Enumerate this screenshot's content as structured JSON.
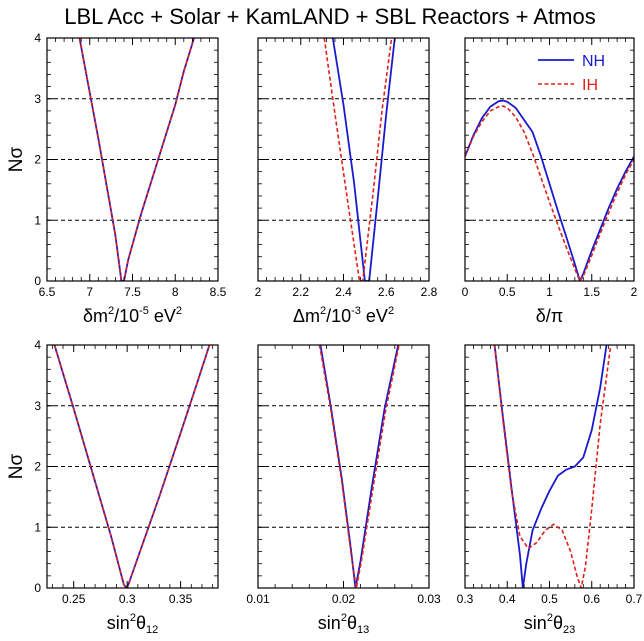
{
  "figure_title": "LBL Acc + Solar + KamLAND + SBL Reactors + Atmos",
  "colors": {
    "nh": "#1a1acc",
    "ih": "#e0201a",
    "axis": "#000000",
    "grid": "#000000"
  },
  "chart_data": [
    {
      "type": "line",
      "panel": "dm21",
      "xlabel": {
        "base": "δm",
        "sup": "2",
        "rest": "/10",
        "sup2": "-5",
        "unit": " eV",
        "sup3": "2"
      },
      "ylabel": "Nσ",
      "xlim": [
        6.5,
        8.5
      ],
      "ylim": [
        0,
        4
      ],
      "xticks": [
        6.5,
        7,
        7.5,
        8,
        8.5
      ],
      "xtick_labels": [
        "6.5",
        "7",
        "7.5",
        "8",
        "8.5"
      ],
      "yticks": [
        0,
        1,
        2,
        3,
        4
      ],
      "ytick_labels": [
        "0",
        "1",
        "2",
        "3",
        "4"
      ],
      "series": [
        {
          "key": "NH",
          "x": [
            6.88,
            7.0,
            7.1,
            7.2,
            7.3,
            7.37,
            7.4,
            7.45,
            7.6,
            7.8,
            8.0,
            8.1,
            8.22
          ],
          "y": [
            4.0,
            3.1,
            2.35,
            1.55,
            0.75,
            0.0,
            0.0,
            0.35,
            1.1,
            2.0,
            2.9,
            3.45,
            4.0
          ]
        },
        {
          "key": "IH",
          "x": [
            6.88,
            7.0,
            7.1,
            7.2,
            7.3,
            7.37,
            7.4,
            7.45,
            7.6,
            7.8,
            8.0,
            8.1,
            8.22
          ],
          "y": [
            4.0,
            3.1,
            2.35,
            1.55,
            0.75,
            0.0,
            0.0,
            0.35,
            1.1,
            2.0,
            2.9,
            3.45,
            4.0
          ]
        }
      ]
    },
    {
      "type": "line",
      "panel": "dm31",
      "xlabel": {
        "base": "Δm",
        "sup": "2",
        "rest": "/10",
        "sup2": "-3",
        "unit": " eV",
        "sup3": "2"
      },
      "ylabel": "",
      "xlim": [
        2.0,
        2.8
      ],
      "ylim": [
        0,
        4
      ],
      "xticks": [
        2.0,
        2.2,
        2.4,
        2.6,
        2.8
      ],
      "xtick_labels": [
        "2",
        "2.2",
        "2.4",
        "2.6",
        "2.8"
      ],
      "yticks": [
        0,
        1,
        2,
        3,
        4
      ],
      "ytick_labels": [],
      "series": [
        {
          "key": "NH",
          "x": [
            2.35,
            2.4,
            2.45,
            2.5,
            2.52,
            2.56,
            2.6,
            2.64
          ],
          "y": [
            4.0,
            2.9,
            1.6,
            0.0,
            0.0,
            1.35,
            2.75,
            4.0
          ]
        },
        {
          "key": "IH",
          "x": [
            2.31,
            2.36,
            2.42,
            2.475,
            2.49,
            2.54,
            2.58,
            2.625
          ],
          "y": [
            4.0,
            2.75,
            1.3,
            0.0,
            0.0,
            1.5,
            2.8,
            4.0
          ]
        }
      ]
    },
    {
      "type": "line",
      "panel": "delta",
      "xlabel": {
        "base": "δ/π",
        "sup": "",
        "rest": "",
        "sup2": "",
        "unit": "",
        "sup3": ""
      },
      "ylabel": "",
      "xlim": [
        0,
        2
      ],
      "ylim": [
        0,
        4
      ],
      "xticks": [
        0,
        0.5,
        1,
        1.5,
        2
      ],
      "xtick_labels": [
        "0",
        "0.5",
        "1",
        "1.5",
        "2"
      ],
      "yticks": [
        0,
        1,
        2,
        3,
        4
      ],
      "ytick_labels": [],
      "legend_position": "top-right",
      "series": [
        {
          "key": "NH",
          "name": "NH",
          "x": [
            0,
            0.1,
            0.2,
            0.3,
            0.4,
            0.45,
            0.5,
            0.6,
            0.7,
            0.8,
            0.9,
            1.0,
            1.1,
            1.2,
            1.3,
            1.36,
            1.4,
            1.5,
            1.6,
            1.7,
            1.8,
            1.9,
            2.0
          ],
          "y": [
            2.05,
            2.4,
            2.68,
            2.87,
            2.96,
            2.97,
            2.95,
            2.85,
            2.65,
            2.45,
            2.05,
            1.6,
            1.15,
            0.72,
            0.28,
            0.0,
            0.12,
            0.5,
            0.85,
            1.2,
            1.52,
            1.8,
            2.05
          ]
        },
        {
          "key": "IH",
          "name": "IH",
          "x": [
            0,
            0.1,
            0.2,
            0.3,
            0.4,
            0.45,
            0.5,
            0.6,
            0.7,
            0.8,
            0.9,
            1.0,
            1.1,
            1.2,
            1.3,
            1.36,
            1.4,
            1.5,
            1.6,
            1.7,
            1.8,
            1.9,
            2.0
          ],
          "y": [
            2.05,
            2.38,
            2.62,
            2.8,
            2.87,
            2.88,
            2.85,
            2.7,
            2.45,
            2.1,
            1.7,
            1.3,
            0.92,
            0.55,
            0.2,
            0.0,
            0.08,
            0.42,
            0.78,
            1.12,
            1.45,
            1.75,
            2.0
          ]
        }
      ]
    },
    {
      "type": "line",
      "panel": "th12",
      "xlabel": {
        "base": "sin",
        "sup": "2",
        "rest": "θ",
        "sub": "12",
        "sup2": "",
        "unit": "",
        "sup3": ""
      },
      "ylabel": "Nσ",
      "xlim": [
        0.225,
        0.385
      ],
      "ylim": [
        0,
        4
      ],
      "xticks": [
        0.25,
        0.3,
        0.35
      ],
      "xtick_labels": [
        "0.25",
        "0.3",
        "0.35"
      ],
      "yticks": [
        0,
        1,
        2,
        3,
        4
      ],
      "ytick_labels": [
        "0",
        "1",
        "2",
        "3",
        "4"
      ],
      "series": [
        {
          "key": "NH",
          "x": [
            0.232,
            0.25,
            0.27,
            0.285,
            0.297,
            0.3,
            0.31,
            0.33,
            0.35,
            0.365,
            0.377
          ],
          "y": [
            4.0,
            2.95,
            1.75,
            0.85,
            0.05,
            0.0,
            0.5,
            1.5,
            2.55,
            3.35,
            4.0
          ]
        },
        {
          "key": "IH",
          "x": [
            0.232,
            0.25,
            0.27,
            0.285,
            0.297,
            0.3,
            0.31,
            0.33,
            0.35,
            0.365,
            0.377
          ],
          "y": [
            4.0,
            2.95,
            1.75,
            0.85,
            0.05,
            0.0,
            0.5,
            1.5,
            2.55,
            3.35,
            4.0
          ]
        }
      ]
    },
    {
      "type": "line",
      "panel": "th13",
      "xlabel": {
        "base": "sin",
        "sup": "2",
        "rest": "θ",
        "sub": "13",
        "sup2": "",
        "unit": "",
        "sup3": ""
      },
      "ylabel": "",
      "xlim": [
        0.01,
        0.03
      ],
      "ylim": [
        0,
        4
      ],
      "xticks": [
        0.01,
        0.02,
        0.03
      ],
      "xtick_labels": [
        "0.01",
        "0.02",
        "0.03"
      ],
      "yticks": [
        0,
        1,
        2,
        3,
        4
      ],
      "ytick_labels": [],
      "series": [
        {
          "key": "NH",
          "x": [
            0.0173,
            0.0185,
            0.0198,
            0.0209,
            0.0214,
            0.022,
            0.0233,
            0.0248,
            0.0264
          ],
          "y": [
            4.0,
            3.0,
            1.8,
            0.6,
            0.0,
            0.45,
            1.65,
            2.95,
            4.0
          ]
        },
        {
          "key": "IH",
          "x": [
            0.0172,
            0.0185,
            0.0198,
            0.0209,
            0.0215,
            0.0221,
            0.0234,
            0.0249,
            0.0265
          ],
          "y": [
            4.0,
            2.95,
            1.75,
            0.55,
            0.0,
            0.45,
            1.6,
            2.9,
            4.0
          ]
        }
      ]
    },
    {
      "type": "line",
      "panel": "th23",
      "xlabel": {
        "base": "sin",
        "sup": "2",
        "rest": "θ",
        "sub": "23",
        "sup2": "",
        "unit": "",
        "sup3": ""
      },
      "ylabel": "",
      "xlim": [
        0.3,
        0.7
      ],
      "ylim": [
        0,
        4
      ],
      "xticks": [
        0.3,
        0.4,
        0.5,
        0.6,
        0.7
      ],
      "xtick_labels": [
        "0.3",
        "0.4",
        "0.5",
        "0.6",
        "0.7"
      ],
      "yticks": [
        0,
        1,
        2,
        3,
        4
      ],
      "ytick_labels": [],
      "series": [
        {
          "key": "NH",
          "x": [
            0.37,
            0.39,
            0.41,
            0.43,
            0.437,
            0.445,
            0.46,
            0.48,
            0.5,
            0.52,
            0.54,
            0.56,
            0.58,
            0.6,
            0.62,
            0.635
          ],
          "y": [
            4.0,
            2.8,
            1.65,
            0.55,
            0.0,
            0.4,
            0.95,
            1.3,
            1.6,
            1.85,
            1.95,
            2.0,
            2.15,
            2.6,
            3.3,
            4.0
          ]
        },
        {
          "key": "IH",
          "x": [
            0.37,
            0.39,
            0.41,
            0.43,
            0.45,
            0.47,
            0.49,
            0.51,
            0.53,
            0.55,
            0.565,
            0.575,
            0.585,
            0.6,
            0.62,
            0.645
          ],
          "y": [
            4.0,
            2.75,
            1.6,
            0.85,
            0.65,
            0.75,
            0.95,
            1.05,
            0.95,
            0.6,
            0.2,
            0.0,
            0.35,
            1.3,
            2.7,
            4.0
          ]
        }
      ]
    }
  ]
}
